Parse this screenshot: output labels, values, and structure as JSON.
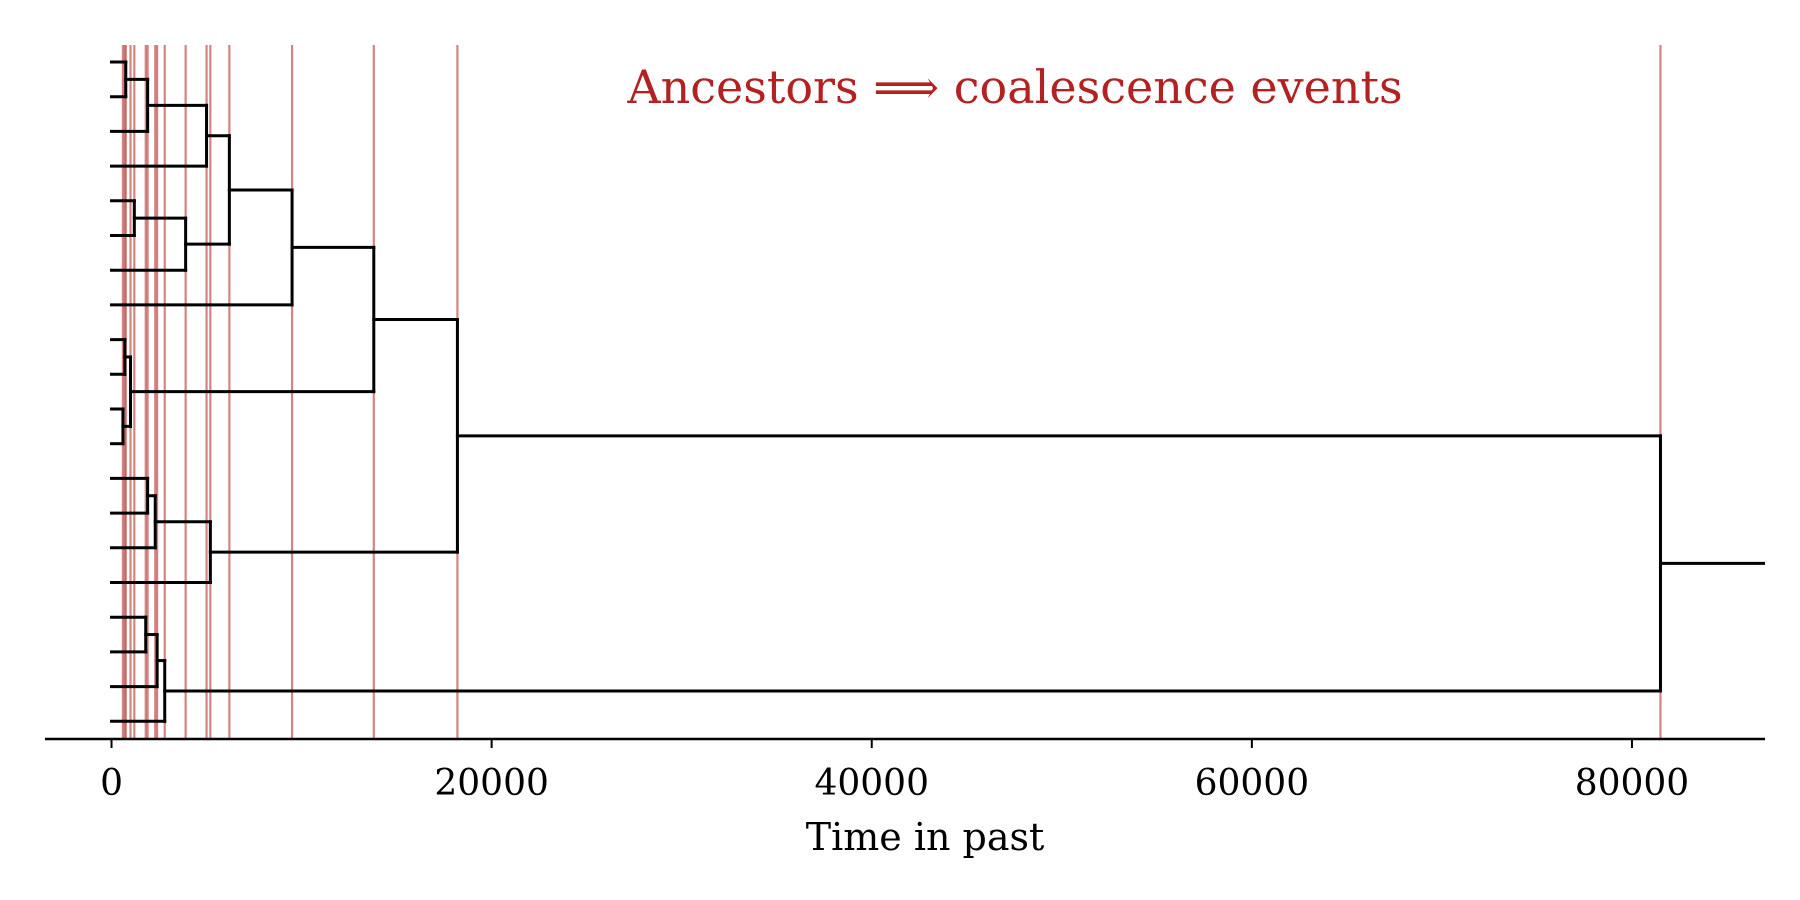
{
  "chart_data": {
    "type": "dendrogram",
    "title": "",
    "annotation": "Ancestors ⟹ coalescence events",
    "xlabel": "Time in past",
    "ylabel": "",
    "xlim": [
      -3500,
      87000
    ],
    "xticks": [
      0,
      20000,
      40000,
      60000,
      80000
    ],
    "xtick_labels": [
      "0",
      "20000",
      "40000",
      "60000",
      "80000"
    ],
    "grid": false,
    "colors": {
      "tree": "#000000",
      "events": "#c0504d",
      "annotation": "#b22222"
    },
    "leaves": 20,
    "root_branch_end": 87000,
    "merges": [
      {
        "id": "A",
        "left": 0,
        "right": 1,
        "time": 750
      },
      {
        "id": "B",
        "left": "A",
        "right": 2,
        "time": 1900
      },
      {
        "id": "C",
        "left": "B",
        "right": 3,
        "time": 5000
      },
      {
        "id": "D",
        "left": 4,
        "right": 5,
        "time": 1200
      },
      {
        "id": "E",
        "left": "D",
        "right": 6,
        "time": 3900
      },
      {
        "id": "F",
        "left": "C",
        "right": "E",
        "time": 6200
      },
      {
        "id": "G",
        "left": "F",
        "right": 7,
        "time": 9500
      },
      {
        "id": "H",
        "left": 8,
        "right": 9,
        "time": 700
      },
      {
        "id": "I",
        "left": 10,
        "right": 11,
        "time": 600
      },
      {
        "id": "J",
        "left": "H",
        "right": "I",
        "time": 1000
      },
      {
        "id": "K",
        "left": "G",
        "right": "J",
        "time": 13800
      },
      {
        "id": "L",
        "left": 12,
        "right": 13,
        "time": 1900
      },
      {
        "id": "M",
        "left": "L",
        "right": 14,
        "time": 2300
      },
      {
        "id": "N",
        "left": "M",
        "right": 15,
        "time": 5200
      },
      {
        "id": "O",
        "left": "K",
        "right": "N",
        "time": 18200
      },
      {
        "id": "P",
        "left": 16,
        "right": 17,
        "time": 1800
      },
      {
        "id": "Q",
        "left": "P",
        "right": 18,
        "time": 2400
      },
      {
        "id": "R",
        "left": "Q",
        "right": 19,
        "time": 2800
      },
      {
        "id": "S",
        "left": "O",
        "right": "R",
        "time": 81500
      }
    ],
    "event_lines": [
      600,
      700,
      750,
      1000,
      1200,
      1800,
      1900,
      2300,
      2400,
      2800,
      3900,
      5000,
      5200,
      6200,
      9500,
      13800,
      18200,
      81500
    ]
  }
}
